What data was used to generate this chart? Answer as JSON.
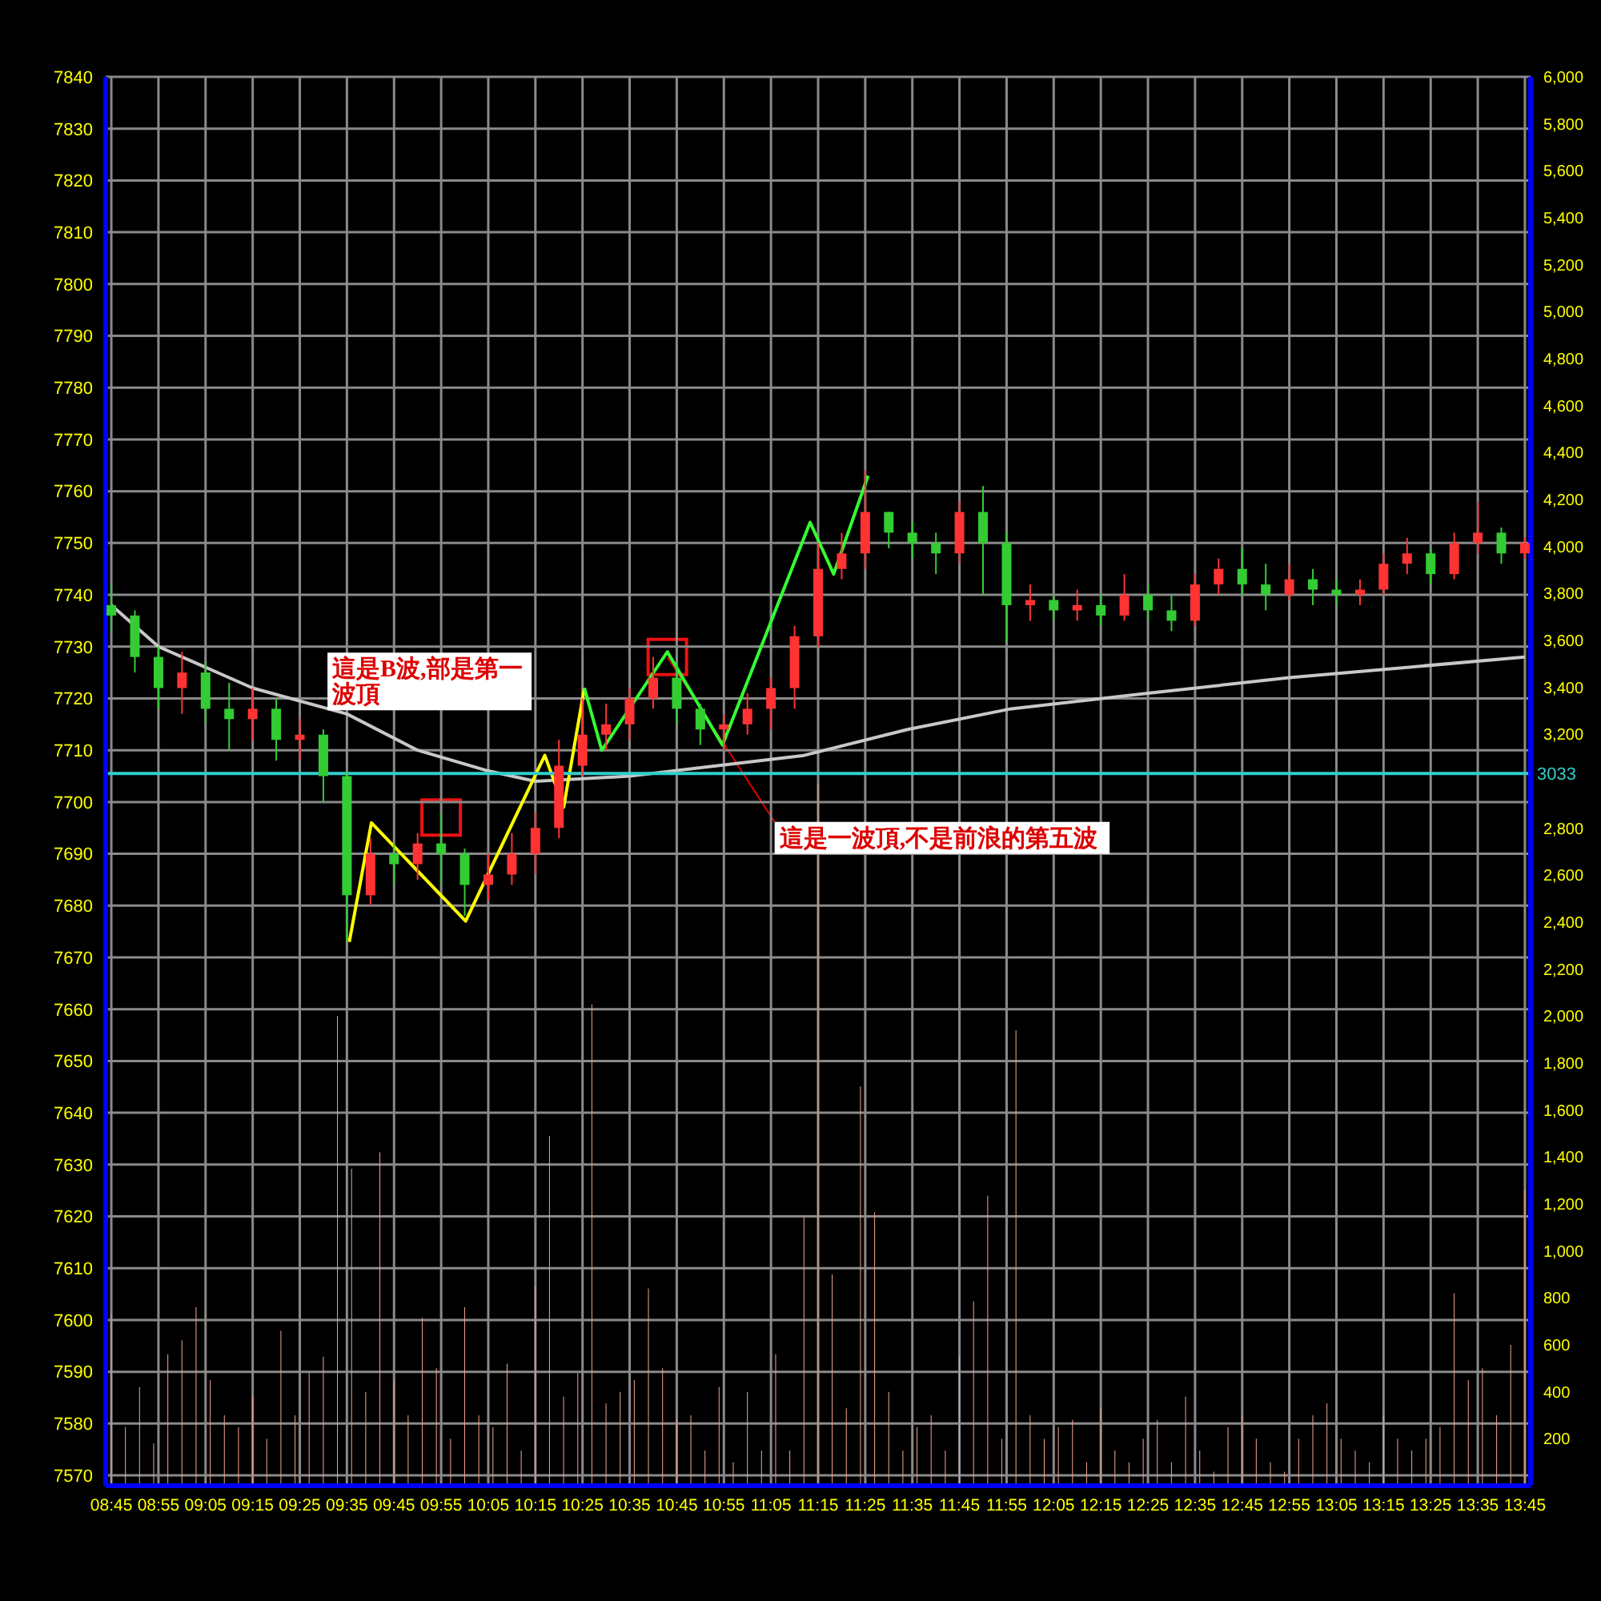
{
  "chart_data": {
    "type": "candlestick",
    "x": [
      8.75,
      8.8333,
      8.9167,
      9.0,
      9.0833,
      9.1667,
      9.25,
      9.3333,
      9.4167,
      9.5,
      9.5833,
      9.6667,
      9.75,
      9.8333,
      9.9167,
      10.0,
      10.0833,
      10.1667,
      10.25,
      10.3333,
      10.4167,
      10.5,
      10.5833,
      10.6667,
      10.75,
      10.8333,
      10.9167,
      11.0,
      11.0833,
      11.1667,
      11.25,
      11.3333,
      11.4167,
      11.5,
      11.5833,
      11.6667,
      11.75,
      11.8333,
      11.9167,
      12.0,
      12.0833,
      12.1667,
      12.25,
      12.3333,
      12.4167,
      12.5,
      12.5833,
      12.6667,
      12.75,
      12.8333,
      12.9167,
      13.0,
      13.0833,
      13.1667,
      13.25,
      13.3333,
      13.4167,
      13.5,
      13.5833,
      13.6667,
      13.75
    ],
    "ohlc": [
      [
        7738,
        7742,
        7733,
        7736
      ],
      [
        7736,
        7737,
        7725,
        7728
      ],
      [
        7728,
        7730,
        7718,
        7722
      ],
      [
        7722,
        7729,
        7717,
        7725
      ],
      [
        7725,
        7727,
        7715,
        7718
      ],
      [
        7718,
        7723,
        7710,
        7716
      ],
      [
        7716,
        7722,
        7712,
        7718
      ],
      [
        7718,
        7720,
        7708,
        7712
      ],
      [
        7712,
        7716,
        7708,
        7713
      ],
      [
        7713,
        7714,
        7700,
        7705
      ],
      [
        7705,
        7706,
        7673,
        7682
      ],
      [
        7682,
        7693,
        7680,
        7690
      ],
      [
        7690,
        7692,
        7684,
        7688
      ],
      [
        7688,
        7694,
        7685,
        7692
      ],
      [
        7692,
        7698,
        7684,
        7690
      ],
      [
        7690,
        7691,
        7678,
        7684
      ],
      [
        7684,
        7690,
        7681,
        7686
      ],
      [
        7686,
        7694,
        7684,
        7690
      ],
      [
        7690,
        7698,
        7686,
        7695
      ],
      [
        7695,
        7712,
        7693,
        7707
      ],
      [
        7707,
        7720,
        7705,
        7713
      ],
      [
        7713,
        7719,
        7710,
        7715
      ],
      [
        7715,
        7722,
        7712,
        7720
      ],
      [
        7720,
        7728,
        7718,
        7724
      ],
      [
        7724,
        7727,
        7715,
        7718
      ],
      [
        7718,
        7719,
        7711,
        7714
      ],
      [
        7714,
        7717,
        7710,
        7715
      ],
      [
        7715,
        7721,
        7713,
        7718
      ],
      [
        7718,
        7724,
        7714,
        7722
      ],
      [
        7722,
        7734,
        7718,
        7732
      ],
      [
        7732,
        7750,
        7730,
        7745
      ],
      [
        7745,
        7752,
        7743,
        7748
      ],
      [
        7748,
        7764,
        7745,
        7756
      ],
      [
        7756,
        7756,
        7749,
        7752
      ],
      [
        7752,
        7754,
        7747,
        7750
      ],
      [
        7750,
        7752,
        7744,
        7748
      ],
      [
        7748,
        7758,
        7746,
        7756
      ],
      [
        7756,
        7761,
        7740,
        7750
      ],
      [
        7750,
        7752,
        7731,
        7738
      ],
      [
        7738,
        7742,
        7735,
        7739
      ],
      [
        7739,
        7740,
        7735,
        7737
      ],
      [
        7737,
        7741,
        7735,
        7738
      ],
      [
        7738,
        7740,
        7734,
        7736
      ],
      [
        7736,
        7744,
        7735,
        7740
      ],
      [
        7740,
        7742,
        7735,
        7737
      ],
      [
        7737,
        7740,
        7733,
        7735
      ],
      [
        7735,
        7744,
        7734,
        7742
      ],
      [
        7742,
        7747,
        7740,
        7745
      ],
      [
        7745,
        7749,
        7740,
        7742
      ],
      [
        7742,
        7746,
        7737,
        7740
      ],
      [
        7740,
        7746,
        7739,
        7743
      ],
      [
        7743,
        7745,
        7738,
        7741
      ],
      [
        7741,
        7743,
        7738,
        7740
      ],
      [
        7740,
        7743,
        7738,
        7741
      ],
      [
        7741,
        7748,
        7740,
        7746
      ],
      [
        7746,
        7751,
        7744,
        7748
      ],
      [
        7748,
        7749,
        7742,
        7744
      ],
      [
        7744,
        7752,
        7743,
        7750
      ],
      [
        7750,
        7758,
        7748,
        7752
      ],
      [
        7752,
        7753,
        7746,
        7748
      ],
      [
        7748,
        7751,
        7747,
        7750
      ]
    ],
    "colors": [
      "#33cc33",
      "#33cc33",
      "#33cc33",
      "#ff3333",
      "#33cc33",
      "#33cc33",
      "#ff3333",
      "#33cc33",
      "#ff3333",
      "#33cc33",
      "#33cc33",
      "#ff3333",
      "#33cc33",
      "#ff3333",
      "#33cc33",
      "#33cc33",
      "#ff3333",
      "#ff3333",
      "#ff3333",
      "#ff3333",
      "#ff3333",
      "#ff3333",
      "#ff3333",
      "#ff3333",
      "#33cc33",
      "#33cc33",
      "#ff3333",
      "#ff3333",
      "#ff3333",
      "#ff3333",
      "#ff3333",
      "#ff3333",
      "#ff3333",
      "#33cc33",
      "#33cc33",
      "#33cc33",
      "#ff3333",
      "#33cc33",
      "#33cc33",
      "#ff3333",
      "#33cc33",
      "#ff3333",
      "#33cc33",
      "#ff3333",
      "#33cc33",
      "#33cc33",
      "#ff3333",
      "#ff3333",
      "#33cc33",
      "#33cc33",
      "#ff3333",
      "#33cc33",
      "#33cc33",
      "#ff3333",
      "#ff3333",
      "#ff3333",
      "#33cc33",
      "#ff3333",
      "#ff3333",
      "#33cc33",
      "#ff3333"
    ],
    "series": [
      {
        "type": "line",
        "color": "#c8c8c8",
        "x": [
          8.75,
          8.9167,
          9.25,
          9.5833,
          9.8333,
          10.0833,
          10.25,
          10.5833,
          11.2,
          11.5667,
          11.9333,
          12.4167,
          12.9167,
          13.3333,
          13.75
        ],
        "values": [
          7738,
          7730,
          7722,
          7717,
          7710,
          7706,
          7704,
          7705,
          7709,
          7714,
          7718,
          7721,
          7724,
          7726,
          7728
        ]
      },
      {
        "type": "line",
        "color": "#ffff00",
        "x": [
          9.5917,
          9.67,
          10.0033,
          10.2833,
          10.35,
          10.4233
        ],
        "values": [
          7673,
          7696,
          7677,
          7709,
          7699,
          7722
        ]
      },
      {
        "type": "line",
        "color": "#33ff33",
        "x": [
          10.4233,
          10.485,
          10.7167,
          10.9117,
          11.2217,
          11.305,
          11.4267
        ],
        "values": [
          7722,
          7710,
          7729,
          7711,
          7754,
          7744,
          7763
        ]
      },
      {
        "type": "bar",
        "axis": "y2",
        "color": "#e8a08a",
        "x": [
          8.75,
          8.8,
          8.85,
          8.9,
          8.95,
          9.0,
          9.05,
          9.1,
          9.15,
          9.2,
          9.25,
          9.3,
          9.35,
          9.4,
          9.45,
          9.5,
          9.55,
          9.6,
          9.65,
          9.7,
          9.75,
          9.8,
          9.85,
          9.9,
          9.95,
          10.0,
          10.05,
          10.1,
          10.15,
          10.2,
          10.25,
          10.3,
          10.35,
          10.4,
          10.45,
          10.5,
          10.55,
          10.6,
          10.65,
          10.7,
          10.75,
          10.8,
          10.85,
          10.9,
          10.95,
          11.0,
          11.05,
          11.1,
          11.15,
          11.2,
          11.25,
          11.3,
          11.35,
          11.4,
          11.45,
          11.5,
          11.55,
          11.6,
          11.65,
          11.7,
          11.75,
          11.8,
          11.85,
          11.9,
          11.95,
          12.0,
          12.05,
          12.1,
          12.15,
          12.2,
          12.25,
          12.3,
          12.35,
          12.4,
          12.45,
          12.5,
          12.55,
          12.6,
          12.65,
          12.7,
          12.75,
          12.8,
          12.85,
          12.9,
          12.95,
          13.0,
          13.05,
          13.1,
          13.15,
          13.2,
          13.25,
          13.3,
          13.35,
          13.4,
          13.45,
          13.5,
          13.55,
          13.6,
          13.65,
          13.7,
          13.75
        ],
        "values": [
          730,
          250,
          420,
          180,
          560,
          620,
          760,
          450,
          300,
          250,
          380,
          200,
          660,
          300,
          480,
          550,
          2000,
          1350,
          400,
          1420,
          450,
          300,
          715,
          500,
          200,
          760,
          300,
          250,
          520,
          150,
          850,
          1490,
          380,
          480,
          2050,
          350,
          400,
          450,
          840,
          500,
          280,
          300,
          150,
          420,
          100,
          400,
          150,
          560,
          150,
          1145,
          2990,
          900,
          330,
          1700,
          1165,
          400,
          150,
          250,
          300,
          150,
          550,
          785,
          1235,
          200,
          1940,
          300,
          200,
          250,
          280,
          100,
          330,
          150,
          100,
          200,
          280,
          100,
          380,
          150,
          60,
          250,
          300,
          200,
          100,
          60,
          200,
          300,
          350,
          200,
          150,
          100,
          300,
          200,
          150,
          200,
          250,
          820,
          450,
          500,
          300,
          600,
          1260
        ]
      }
    ],
    "xlim": [
      8.73,
      13.77
    ],
    "xticks": [
      {
        "value": 8.75,
        "label": "08:45"
      },
      {
        "value": 8.9167,
        "label": "08:55"
      },
      {
        "value": 9.0833,
        "label": "09:05"
      },
      {
        "value": 9.25,
        "label": "09:15"
      },
      {
        "value": 9.4167,
        "label": "09:25"
      },
      {
        "value": 9.5833,
        "label": "09:35"
      },
      {
        "value": 9.75,
        "label": "09:45"
      },
      {
        "value": 9.9167,
        "label": "09:55"
      },
      {
        "value": 10.0833,
        "label": "10:05"
      },
      {
        "value": 10.25,
        "label": "10:15"
      },
      {
        "value": 10.4167,
        "label": "10:25"
      },
      {
        "value": 10.5833,
        "label": "10:35"
      },
      {
        "value": 10.75,
        "label": "10:45"
      },
      {
        "value": 10.9167,
        "label": "10:55"
      },
      {
        "value": 11.0833,
        "label": "11:05"
      },
      {
        "value": 11.25,
        "label": "11:15"
      },
      {
        "value": 11.4167,
        "label": "11:25"
      },
      {
        "value": 11.5833,
        "label": "11:35"
      },
      {
        "value": 11.75,
        "label": "11:45"
      },
      {
        "value": 11.9167,
        "label": "11:55"
      },
      {
        "value": 12.0833,
        "label": "12:05"
      },
      {
        "value": 12.25,
        "label": "12:15"
      },
      {
        "value": 12.4167,
        "label": "12:25"
      },
      {
        "value": 12.5833,
        "label": "12:35"
      },
      {
        "value": 12.75,
        "label": "12:45"
      },
      {
        "value": 12.9167,
        "label": "12:55"
      },
      {
        "value": 13.0833,
        "label": "13:05"
      },
      {
        "value": 13.25,
        "label": "13:15"
      },
      {
        "value": 13.4167,
        "label": "13:25"
      },
      {
        "value": 13.5833,
        "label": "13:35"
      },
      {
        "value": 13.75,
        "label": "13:45"
      }
    ],
    "ylim": [
      7568,
      7840
    ],
    "yticks": [
      7570,
      7580,
      7590,
      7600,
      7610,
      7620,
      7630,
      7640,
      7650,
      7660,
      7670,
      7680,
      7690,
      7700,
      7710,
      7720,
      7730,
      7740,
      7750,
      7760,
      7770,
      7780,
      7790,
      7800,
      7810,
      7820,
      7830,
      7840
    ],
    "y2lim": [
      0,
      6000
    ],
    "y2ticks": [
      200,
      400,
      600,
      800,
      {
        "value": 1000,
        "label": "1,000"
      },
      {
        "value": 1200,
        "label": "1,200"
      },
      {
        "value": 1400,
        "label": "1,400"
      },
      {
        "value": 1600,
        "label": "1,600"
      },
      {
        "value": 1800,
        "label": "1,800"
      },
      {
        "value": 2000,
        "label": "2,000"
      },
      {
        "value": 2200,
        "label": "2,200"
      },
      {
        "value": 2400,
        "label": "2,400"
      },
      {
        "value": 2600,
        "label": "2,600"
      },
      {
        "value": 2800,
        "label": "2,800"
      },
      {
        "value": 3200,
        "label": "3,200"
      },
      {
        "value": 3400,
        "label": "3,400"
      },
      {
        "value": 3600,
        "label": "3,600"
      },
      {
        "value": 3800,
        "label": "3,800"
      },
      {
        "value": 4000,
        "label": "4,000"
      },
      {
        "value": 4200,
        "label": "4,200"
      },
      {
        "value": 4400,
        "label": "4,400"
      },
      {
        "value": 4600,
        "label": "4,600"
      },
      {
        "value": 4800,
        "label": "4,800"
      },
      {
        "value": 5000,
        "label": "5,000"
      },
      {
        "value": 5200,
        "label": "5,200"
      },
      {
        "value": 5400,
        "label": "5,400"
      },
      {
        "value": 5600,
        "label": "5,600"
      },
      {
        "value": 5800,
        "label": "5,800"
      },
      {
        "value": 6000,
        "label": "6,000"
      }
    ],
    "ref_lines": [
      {
        "axis": "y2",
        "value": 3033,
        "label": "3033",
        "color": "#33cccc"
      }
    ],
    "annotations": [
      {
        "text": "這是B波,部是第一波頂",
        "x": 9.9167,
        "y": 7697
      },
      {
        "text": "這是一波頂,不是前浪的第五波",
        "x": 10.7167,
        "y": 7728
      }
    ],
    "grid": true
  }
}
